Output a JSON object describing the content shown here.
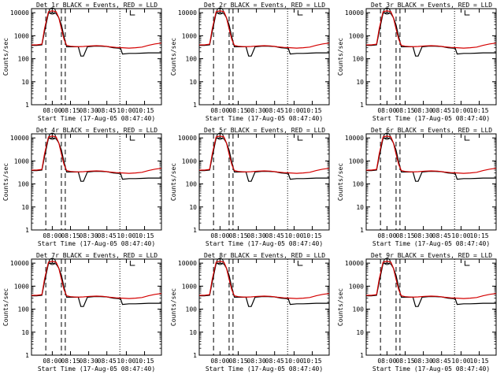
{
  "panels": [
    {
      "title": "Det 1r BLACK = Events, RED = LLD"
    },
    {
      "title": "Det 2r BLACK = Events, RED = LLD"
    },
    {
      "title": "Det 3r BLACK = Events, RED = LLD"
    },
    {
      "title": "Det 4r BLACK = Events, RED = LLD"
    },
    {
      "title": "Det 5r BLACK = Events, RED = LLD"
    },
    {
      "title": "Det 6r BLACK = Events, RED = LLD"
    },
    {
      "title": "Det 7r BLACK = Events, RED = LLD"
    },
    {
      "title": "Det 8r BLACK = Events, RED = LLD"
    },
    {
      "title": "Det 9r BLACK = Events, RED = LLD"
    }
  ],
  "chart_data": {
    "type": "line",
    "panel_count": 9,
    "xlabel": "Start Time (17-Aug-05 08:47:40)",
    "ylabel": "Counts/sec",
    "x_ticks": [
      "08:00",
      "08:15",
      "08:30",
      "08:45",
      "10:00",
      "10:15"
    ],
    "y_ticks": [
      "1",
      "10",
      "100",
      "1000",
      "10000"
    ],
    "y_scale": "log",
    "ylim": [
      1,
      15000
    ],
    "x_tick_positions": [
      0.16,
      0.3,
      0.44,
      0.58,
      0.73,
      0.87
    ],
    "vlines_dashed": [
      0.11,
      0.23,
      0.26
    ],
    "vlines_dotted": [
      0.68
    ],
    "colors": {
      "events": "#000000",
      "lld": "#d40000",
      "axis": "#000000"
    },
    "series": [
      {
        "name": "BLACK = Events",
        "color": "#000000",
        "x": [
          0.0,
          0.04,
          0.08,
          0.1,
          0.13,
          0.16,
          0.19,
          0.21,
          0.23,
          0.25,
          0.27,
          0.3,
          0.33,
          0.36,
          0.38,
          0.4,
          0.43,
          0.48,
          0.53,
          0.58,
          0.63,
          0.67,
          0.685,
          0.7,
          0.75,
          0.8,
          0.85,
          0.9,
          0.95,
          1.0
        ],
        "y": [
          380,
          380,
          400,
          1500,
          9500,
          10000,
          9200,
          6000,
          3000,
          900,
          330,
          330,
          330,
          330,
          130,
          130,
          330,
          350,
          350,
          340,
          300,
          290,
          290,
          160,
          170,
          170,
          175,
          180,
          180,
          180
        ]
      },
      {
        "name": "RED = LLD",
        "color": "#d40000",
        "x": [
          0.0,
          0.04,
          0.08,
          0.1,
          0.13,
          0.16,
          0.19,
          0.21,
          0.23,
          0.25,
          0.27,
          0.3,
          0.35,
          0.4,
          0.45,
          0.5,
          0.55,
          0.6,
          0.65,
          0.7,
          0.75,
          0.8,
          0.85,
          0.9,
          0.95,
          1.0
        ],
        "y": [
          400,
          400,
          430,
          2000,
          11000,
          12000,
          11000,
          6000,
          2000,
          700,
          380,
          350,
          330,
          340,
          360,
          370,
          360,
          330,
          310,
          300,
          290,
          300,
          320,
          380,
          440,
          480
        ]
      }
    ]
  }
}
